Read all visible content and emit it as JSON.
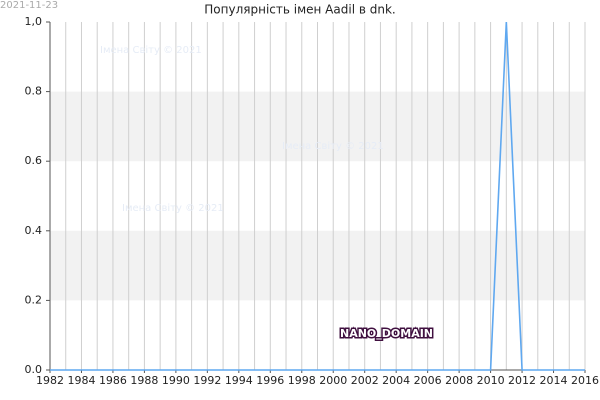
{
  "chart_data": {
    "type": "line",
    "date": "2021-11-23",
    "title": "Популярність імен Aadil в dnk.",
    "watermarks": [
      "Імена Світу © 2021",
      "Імена Світу © 2021",
      "Імена Світу © 2021"
    ],
    "label": "NANO_DOMAIN",
    "x": [
      1982,
      1983,
      1984,
      1985,
      1986,
      1987,
      1988,
      1989,
      1990,
      1991,
      1992,
      1993,
      1994,
      1995,
      1996,
      1997,
      1998,
      1999,
      2000,
      2001,
      2002,
      2003,
      2004,
      2005,
      2006,
      2007,
      2008,
      2009,
      2010,
      2011,
      2012,
      2013,
      2014,
      2015,
      2016
    ],
    "series": [
      {
        "name": "Aadil",
        "color": "#5fa8f0",
        "values": [
          0,
          0,
          0,
          0,
          0,
          0,
          0,
          0,
          0,
          0,
          0,
          0,
          0,
          0,
          0,
          0,
          0,
          0,
          0,
          0,
          0,
          0,
          0,
          0,
          0,
          0,
          0,
          0,
          0,
          1,
          0,
          0,
          0,
          0,
          0
        ]
      }
    ],
    "xlim": [
      1982,
      2016
    ],
    "xticks": [
      1982,
      1984,
      1986,
      1988,
      1990,
      1992,
      1994,
      1996,
      1998,
      2000,
      2002,
      2004,
      2006,
      2008,
      2010,
      2012,
      2014,
      2016
    ],
    "ylim": [
      0,
      1
    ],
    "yticks": [
      {
        "value": 0,
        "label": "0.0"
      },
      {
        "value": 0.2,
        "label": "0.2"
      },
      {
        "value": 0.4,
        "label": "0.4"
      },
      {
        "value": 0.6,
        "label": "0.6"
      },
      {
        "value": 0.8,
        "label": "0.8"
      },
      {
        "value": 1,
        "label": "1,0"
      }
    ],
    "grid": true
  }
}
